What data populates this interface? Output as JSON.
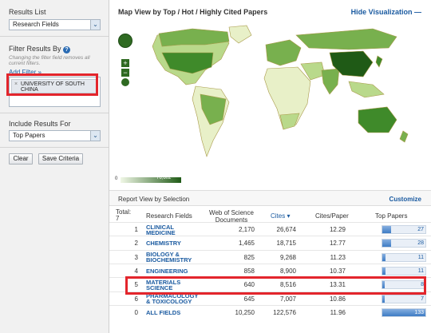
{
  "sidebar": {
    "results_list_label": "Results List",
    "results_list_value": "Research Fields",
    "filter_label": "Filter Results By",
    "filter_note": "Changing the filter field removes all current filters.",
    "add_filter": "Add Filter »",
    "filter_tag": "UNIVERSITY OF SOUTH CHINA",
    "include_label": "Include Results For",
    "include_value": "Top Papers",
    "clear_label": "Clear",
    "save_label": "Save Criteria"
  },
  "map": {
    "title": "Map View by Top / Hot / Highly Cited Papers",
    "hide_label": "Hide Visualization",
    "legend_min": "0",
    "legend_max": "76,602",
    "colors": {
      "land": "#e8f0c8",
      "light": "#b9d98b",
      "mid": "#78b04e",
      "dark": "#3f8a2a",
      "darkest": "#1f5a16",
      "ocean": "#ffffff"
    }
  },
  "report": {
    "title": "Report View by Selection",
    "customize": "Customize",
    "total_label": "Total:",
    "total_value": "7",
    "headers": {
      "fields": "Research Fields",
      "wos": "Web of Science Documents",
      "cites": "Cites",
      "per": "Cites/Paper",
      "top": "Top Papers"
    },
    "rows": [
      {
        "rank": "1",
        "field": "CLINICAL MEDICINE",
        "wos": "2,170",
        "cites": "26,674",
        "per": "12.29",
        "top": "27",
        "frac": 0.203
      },
      {
        "rank": "2",
        "field": "CHEMISTRY",
        "wos": "1,465",
        "cites": "18,715",
        "per": "12.77",
        "top": "28",
        "frac": 0.211
      },
      {
        "rank": "3",
        "field": "BIOLOGY & BIOCHEMISTRY",
        "wos": "825",
        "cites": "9,268",
        "per": "11.23",
        "top": "11",
        "frac": 0.083
      },
      {
        "rank": "4",
        "field": "ENGINEERING",
        "wos": "858",
        "cites": "8,900",
        "per": "10.37",
        "top": "11",
        "frac": 0.083
      },
      {
        "rank": "5",
        "field": "MATERIALS SCIENCE",
        "wos": "640",
        "cites": "8,516",
        "per": "13.31",
        "top": "8",
        "frac": 0.06
      },
      {
        "rank": "6",
        "field": "PHARMACOLOGY & TOXICOLOGY",
        "wos": "645",
        "cites": "7,007",
        "per": "10.86",
        "top": "7",
        "frac": 0.053
      },
      {
        "rank": "0",
        "field": "ALL FIELDS",
        "wos": "10,250",
        "cites": "122,576",
        "per": "11.96",
        "top": "133",
        "frac": 1.0
      }
    ]
  },
  "accent": "#1a5aa0",
  "highlight": "#e3252c"
}
